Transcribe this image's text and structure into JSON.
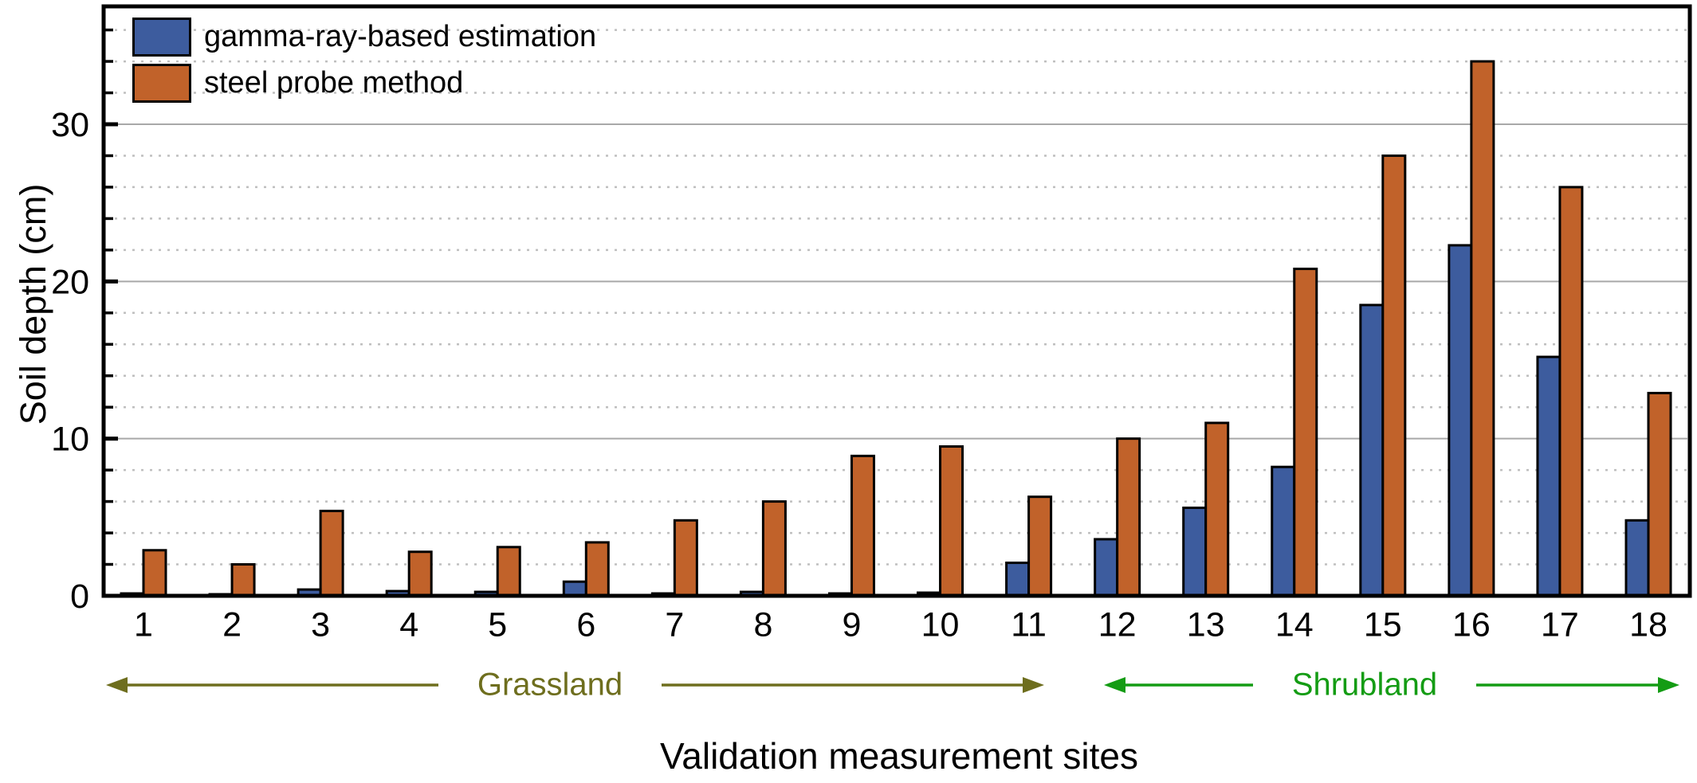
{
  "chart_data": {
    "type": "bar",
    "title": "",
    "xlabel": "Validation measurement sites",
    "ylabel": "Soil depth (cm)",
    "categories": [
      "1",
      "2",
      "3",
      "4",
      "5",
      "6",
      "7",
      "8",
      "9",
      "10",
      "11",
      "12",
      "13",
      "14",
      "15",
      "16",
      "17",
      "18"
    ],
    "series": [
      {
        "name": "gamma-ray-based estimation",
        "color": "#3D5C9E",
        "values": [
          0.15,
          0.1,
          0.4,
          0.3,
          0.25,
          0.9,
          0.15,
          0.25,
          0.15,
          0.2,
          2.1,
          3.6,
          5.6,
          8.2,
          18.5,
          22.3,
          15.2,
          4.8
        ]
      },
      {
        "name": "steel probe method",
        "color": "#C1622A",
        "values": [
          2.9,
          2.0,
          5.4,
          2.8,
          3.1,
          3.4,
          4.8,
          6.0,
          8.9,
          9.5,
          6.3,
          10.0,
          11.0,
          20.8,
          28.0,
          34.0,
          26.0,
          12.9
        ]
      }
    ],
    "ylim": [
      0,
      37.5
    ],
    "yticks_major": [
      0,
      10,
      20,
      30
    ],
    "y_minor_step": 2,
    "grid": {
      "major": "solid",
      "minor": "dotted",
      "major_color": "#A8A8A8",
      "minor_color": "#BFBFBF"
    },
    "legend_position": "inside top-left",
    "bar_border_color": "#000000",
    "annotations": [
      {
        "label": "Grassland",
        "site_start": 1,
        "site_end": 11,
        "color": "#6E6E1E"
      },
      {
        "label": "Shrubland",
        "site_start": 12,
        "site_end": 18,
        "color": "#149C14"
      }
    ]
  }
}
